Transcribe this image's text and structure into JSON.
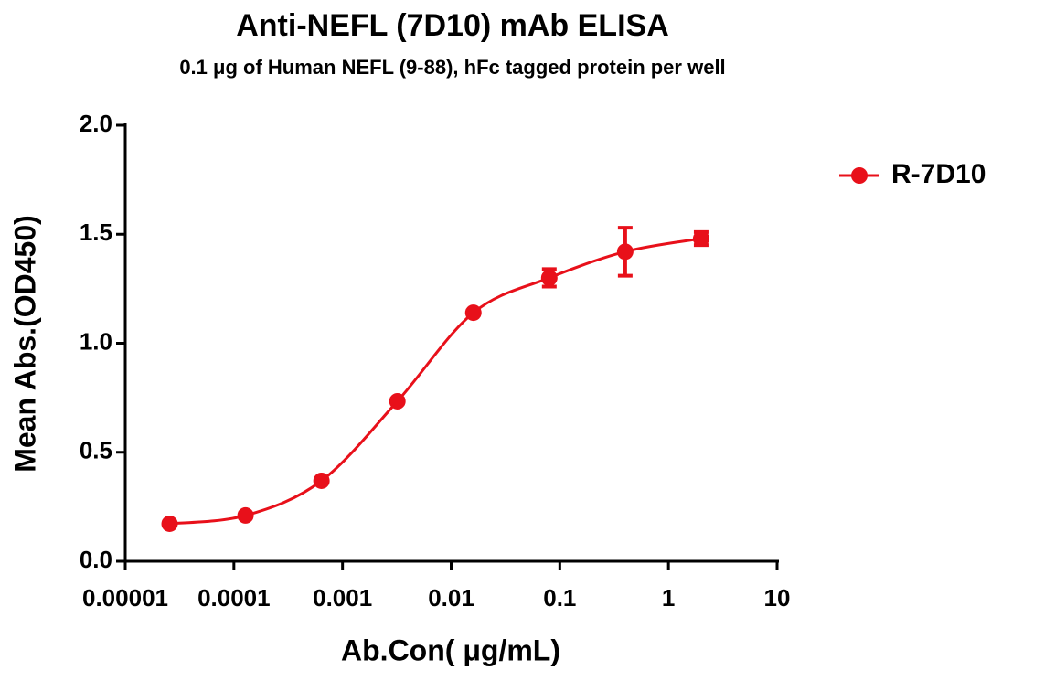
{
  "chart_data": {
    "type": "line",
    "title": "Anti-NEFL (7D10) mAb ELISA",
    "subtitle": "0.1 μg of Human NEFL (9-88), hFc tagged protein per well",
    "x_label": "Ab.Con( μg/mL)",
    "y_label": "Mean Abs.(OD450)",
    "x_scale": "log",
    "x": [
      2.56e-05,
      0.000128,
      0.00064,
      0.0032,
      0.016,
      0.08,
      0.4,
      2
    ],
    "series": [
      {
        "name": "R-7D10",
        "color": "#e8101a",
        "values": [
          0.172,
          0.21,
          0.369,
          0.734,
          1.14,
          1.3,
          1.42,
          1.48
        ],
        "error": [
          0.01,
          0.01,
          0.01,
          0.01,
          0.01,
          0.04,
          0.11,
          0.03
        ]
      }
    ],
    "xlim": [
      1e-05,
      10
    ],
    "xticks": [
      {
        "value": 1e-05,
        "label": "0.00001"
      },
      {
        "value": 0.0001,
        "label": "0.0001"
      },
      {
        "value": 0.001,
        "label": "0.001"
      },
      {
        "value": 0.01,
        "label": "0.01"
      },
      {
        "value": 0.1,
        "label": "0.1"
      },
      {
        "value": 1,
        "label": "1"
      },
      {
        "value": 10,
        "label": "10"
      }
    ],
    "ylim": [
      0,
      2
    ],
    "yticks": [
      {
        "value": 0,
        "label": "0.0"
      },
      {
        "value": 0.5,
        "label": "0.5"
      },
      {
        "value": 1,
        "label": "1.0"
      },
      {
        "value": 1.5,
        "label": "1.5"
      },
      {
        "value": 2,
        "label": "2.0"
      }
    ],
    "legend": "right"
  }
}
